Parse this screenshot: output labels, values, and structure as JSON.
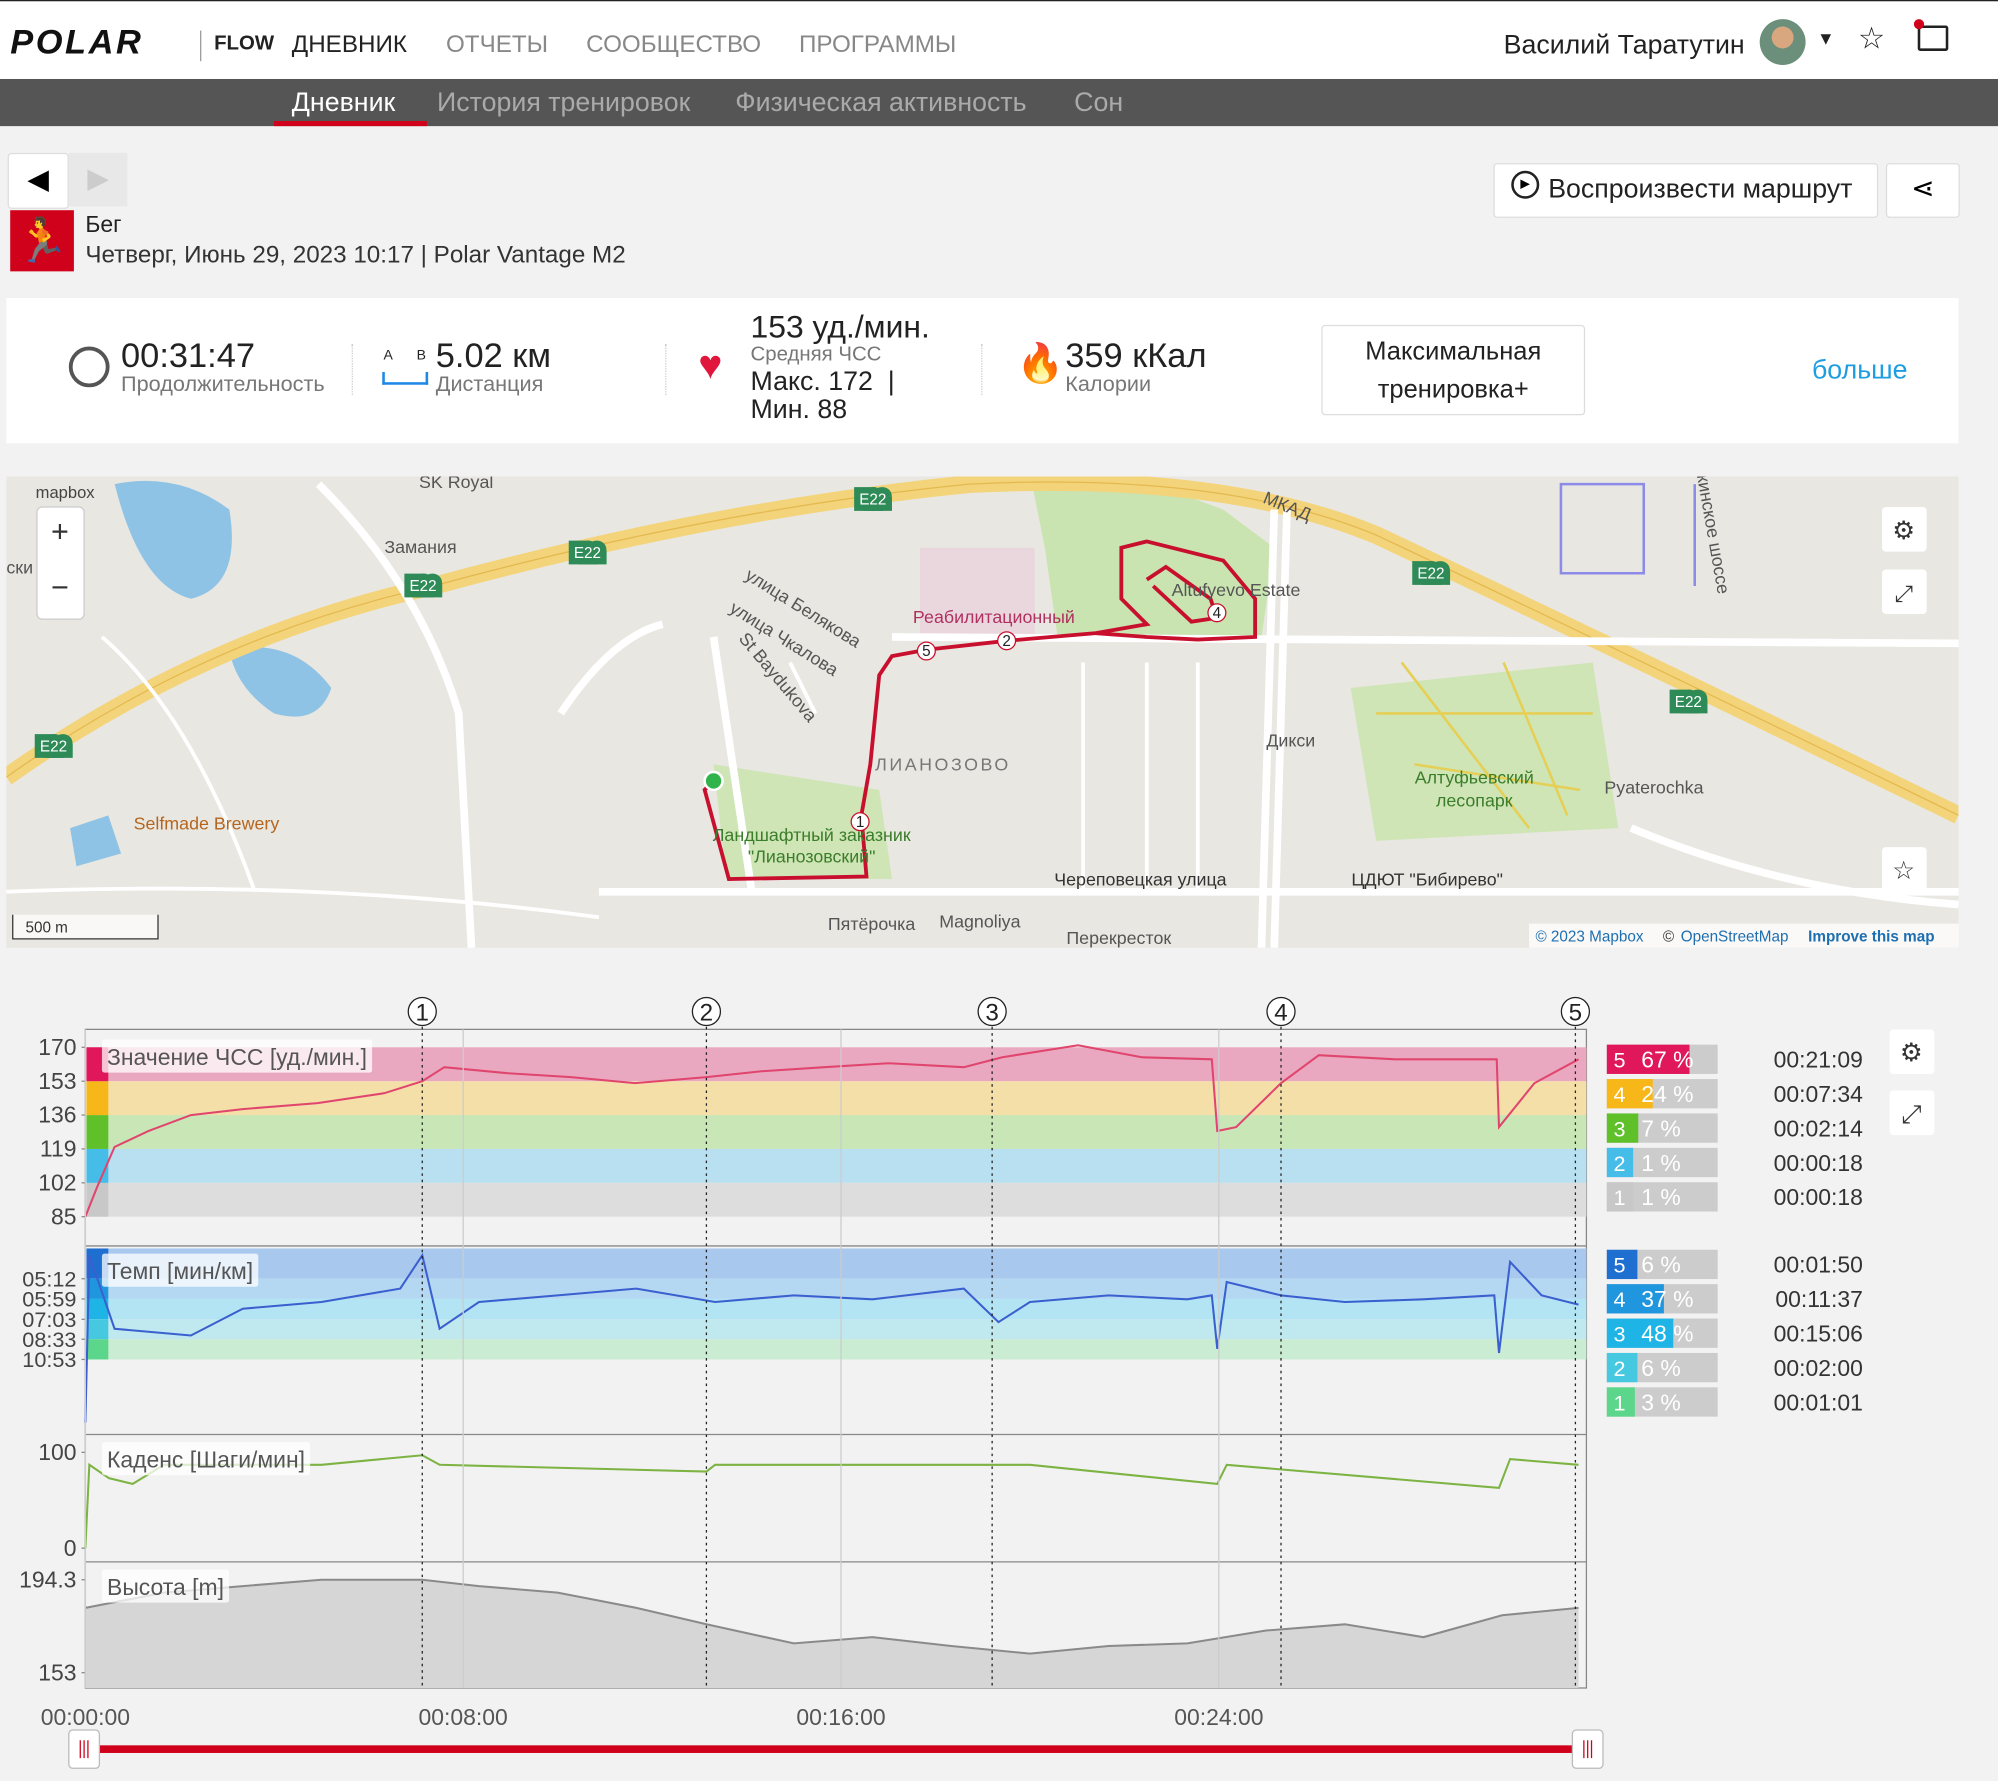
{
  "header": {
    "brand": "POLAR",
    "product": "FLOW",
    "tabs": [
      "ДНЕВНИК",
      "ОТЧЕТЫ",
      "СООБЩЕСТВО",
      "ПРОГРАММЫ"
    ],
    "user": "Василий Таратутин"
  },
  "subnav": {
    "tabs": [
      "Дневник",
      "История тренировок",
      "Физическая активность",
      "Сон"
    ]
  },
  "activity": {
    "sport": "Бег",
    "details": "Четверг, Июнь 29, 2023 10:17 | Polar Vantage M2",
    "replay": "Воспроизвести маршрут"
  },
  "summary": {
    "duration": {
      "value": "00:31:47",
      "label": "Продолжительность"
    },
    "distance": {
      "from": "A",
      "to": "B",
      "value": "5.02 км",
      "label": "Дистанция"
    },
    "heart_rate": {
      "value": "153 уд./мин.",
      "label": "Средняя ЧСС",
      "max": "Макс. 172  |",
      "min": "Мин. 88"
    },
    "calories": {
      "value": "359 кКал",
      "label": "Калории"
    },
    "benefit": "Максимальная тренировка+",
    "more": "больше"
  },
  "map": {
    "logo": "mapbox",
    "labels": [
      "SK Royal",
      "Замания",
      "E22",
      "E22",
      "E22",
      "E22",
      "E22",
      "E22",
      "МКАД",
      "улица Белякова",
      "улица Чкалова",
      "St Baydukova",
      "Реабилитационный",
      "Altufyevo Estate",
      "ЛИАНОЗОВО",
      "Дикси",
      "Алтуфьевский",
      "лесопарк",
      "Pyaterochka",
      "Selfmade Brewery",
      "Ландшафтный заказник",
      "\"Лианозовский\"",
      "Череповецкая улица",
      "ЦДЮТ \"Бибирево\"",
      "Пятёрочка",
      "Magnoliya",
      "Перекресток",
      "ски",
      "кинское шоссе"
    ],
    "markers": [
      "1",
      "2",
      "4",
      "5"
    ],
    "scale": "500 m",
    "attribution": [
      "© 2023 Mapbox",
      "©",
      "OpenStreetMap",
      "Improve this map"
    ]
  },
  "charts": {
    "xlim": [
      0,
      1907
    ],
    "xticks": [
      {
        "value": 0,
        "label": "00:00:00"
      },
      {
        "value": 480,
        "label": "00:08:00"
      },
      {
        "value": 960,
        "label": "00:16:00"
      },
      {
        "value": 1440,
        "label": "00:24:00"
      }
    ],
    "laps": {
      "x": [
        428,
        789,
        1152,
        1519,
        1893
      ],
      "labels": [
        "1",
        "2",
        "3",
        "4",
        "5"
      ]
    },
    "panels": [
      {
        "title": "Значение ЧСС [уд./мин.]",
        "color": "#e0456e",
        "ylim": [
          78,
          179
        ],
        "yticks": [
          85,
          102,
          119,
          136,
          153,
          170
        ],
        "x": [
          0,
          15,
          37,
          80,
          134,
          200,
          295,
          380,
          428,
          456,
          536,
          617,
          698,
          789,
          859,
          939,
          1020,
          1116,
          1165,
          1261,
          1342,
          1431,
          1438,
          1462,
          1519,
          1567,
          1664,
          1793,
          1796,
          1841,
          1897
        ],
        "values": [
          85,
          100,
          120,
          128,
          136,
          139,
          142,
          147,
          153,
          160,
          157,
          155,
          152,
          155,
          158,
          160,
          162,
          160,
          165,
          171,
          165,
          164,
          128,
          130,
          152,
          166,
          164,
          164,
          130,
          152,
          164
        ],
        "zones": [
          {
            "zone": "5",
            "percent": 67,
            "label": "67 %",
            "time": "00:21:09"
          },
          {
            "zone": "4",
            "percent": 24,
            "label": "24 %",
            "time": "00:07:34"
          },
          {
            "zone": "3",
            "percent": 7,
            "label": "7 %",
            "time": "00:02:14"
          },
          {
            "zone": "2",
            "percent": 1,
            "label": "1 %",
            "time": "00:00:18"
          },
          {
            "zone": "1",
            "percent": 1,
            "label": "1 %",
            "time": "00:00:18"
          }
        ]
      },
      {
        "title": "Темп [мин/км]",
        "color": "#3a5fcf",
        "ylim": [
          0,
          13.8
        ],
        "yticks": [
          {
            "value": 11.54,
            "label": "05:12"
          },
          {
            "value": 10.03,
            "label": "05:59"
          },
          {
            "value": 8.51,
            "label": "07:03"
          },
          {
            "value": 7.02,
            "label": "08:33"
          },
          {
            "value": 5.51,
            "label": "10:53"
          }
        ],
        "x": [
          0,
          5,
          37,
          134,
          200,
          300,
          400,
          428,
          450,
          500,
          600,
          700,
          800,
          900,
          1000,
          1116,
          1160,
          1200,
          1300,
          1400,
          1431,
          1438,
          1450,
          1519,
          1600,
          1700,
          1790,
          1796,
          1810,
          1850,
          1897
        ],
        "values": [
          0.8,
          13.3,
          7.8,
          7.3,
          9.3,
          9.8,
          10.8,
          13.3,
          7.8,
          9.8,
          10.3,
          10.8,
          9.8,
          10.3,
          10.0,
          10.8,
          8.3,
          9.8,
          10.3,
          10.0,
          10.3,
          6.3,
          11.3,
          10.3,
          9.8,
          10.0,
          10.3,
          6.0,
          12.8,
          10.3,
          9.6
        ],
        "zones": [
          {
            "zone": "5",
            "percent": 6,
            "label": "6 %",
            "time": "00:01:50"
          },
          {
            "zone": "4",
            "percent": 37,
            "label": "37 %",
            "time": "00:11:37"
          },
          {
            "zone": "3",
            "percent": 48,
            "label": "48 %",
            "time": "00:15:06"
          },
          {
            "zone": "2",
            "percent": 6,
            "label": "6 %",
            "time": "00:02:00"
          },
          {
            "zone": "1",
            "percent": 3,
            "label": "3 %",
            "time": "00:01:01"
          }
        ]
      },
      {
        "title": "Каденс [Шаги/мин]",
        "color": "#7cb342",
        "ylim": [
          -13,
          116
        ],
        "yticks": [
          0,
          100
        ],
        "x": [
          0,
          5,
          30,
          60,
          100,
          300,
          428,
          450,
          789,
          800,
          1200,
          1438,
          1450,
          1796,
          1810,
          1897
        ],
        "values": [
          0,
          87,
          73,
          67,
          87,
          87,
          97,
          87,
          80,
          87,
          87,
          67,
          87,
          63,
          93,
          87
        ]
      },
      {
        "title": "Высота [m]",
        "color": "#8a8a8a",
        "ylim": [
          146.2,
          201.1
        ],
        "yticks": [
          194.3,
          153.0
        ],
        "x": [
          0,
          100,
          200,
          300,
          428,
          500,
          600,
          700,
          789,
          900,
          1000,
          1100,
          1200,
          1300,
          1400,
          1500,
          1600,
          1700,
          1800,
          1897
        ],
        "values": [
          181.8,
          188.6,
          191.5,
          194.3,
          194.3,
          191.5,
          188.6,
          181.8,
          174.5,
          166,
          168.8,
          164.9,
          161.5,
          164.9,
          166,
          171.7,
          174.5,
          168.8,
          178.5,
          181.8
        ]
      }
    ]
  }
}
